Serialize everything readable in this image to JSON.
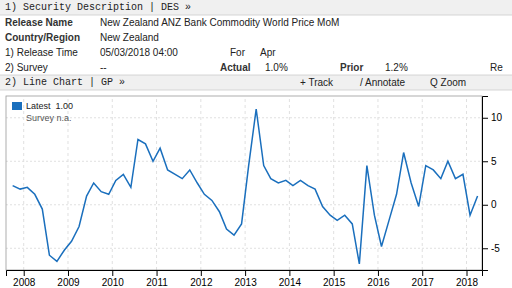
{
  "chart_data": {
    "type": "line",
    "annotations": [
      "1) Security Description  | DES »",
      "Release Name",
      "New Zealand ANZ Bank Commodity World Price MoM",
      "Country/Region",
      "New Zealand",
      "1) Release Time",
      "05/03/2018 04:00",
      "For",
      "Apr",
      "2) Survey",
      "--",
      "Actual",
      "1.0%",
      "Prior",
      "1.2%",
      "Re",
      "2) Line Chart | GP »",
      "+ Track",
      "/ Annotate",
      "Q Zoom",
      "Latest  1.00",
      "Survey n.a."
    ],
    "x": [
      2007.75,
      2007.92,
      2008.08,
      2008.25,
      2008.42,
      2008.58,
      2008.75,
      2008.92,
      2009.08,
      2009.25,
      2009.42,
      2009.58,
      2009.75,
      2009.92,
      2010.08,
      2010.25,
      2010.42,
      2010.58,
      2010.75,
      2010.92,
      2011.08,
      2011.25,
      2011.42,
      2011.58,
      2011.75,
      2011.92,
      2012.08,
      2012.25,
      2012.42,
      2012.58,
      2012.75,
      2012.92,
      2013.08,
      2013.25,
      2013.42,
      2013.58,
      2013.75,
      2013.92,
      2014.08,
      2014.25,
      2014.42,
      2014.58,
      2014.75,
      2014.92,
      2015.08,
      2015.25,
      2015.42,
      2015.58,
      2015.75,
      2015.92,
      2016.08,
      2016.25,
      2016.42,
      2016.58,
      2016.75,
      2016.92,
      2017.08,
      2017.25,
      2017.42,
      2017.58,
      2017.75,
      2017.92,
      2018.08,
      2018.25
    ],
    "values": [
      2.2,
      1.8,
      2.0,
      1.2,
      -0.5,
      -5.8,
      -6.5,
      -5.2,
      -4.2,
      -2.5,
      1.0,
      2.5,
      1.5,
      1.2,
      2.8,
      3.5,
      2.0,
      7.5,
      7.0,
      5.0,
      6.5,
      4.0,
      3.5,
      3.0,
      4.0,
      2.5,
      1.2,
      0.5,
      -0.8,
      -2.8,
      -3.5,
      -2.2,
      4.5,
      11.0,
      4.5,
      3.0,
      2.5,
      2.8,
      2.2,
      2.8,
      2.2,
      1.8,
      -0.2,
      -1.2,
      -1.8,
      -1.2,
      -2.2,
      -6.8,
      4.5,
      -1.2,
      -4.8,
      -1.8,
      1.2,
      6.0,
      2.5,
      -0.2,
      4.5,
      4.0,
      3.0,
      5.0,
      3.0,
      3.5,
      -1.2,
      1.0
    ],
    "color": "#1a6fbd",
    "xlim": [
      2007.6,
      2018.35
    ],
    "xticks": [
      2008,
      2009,
      2010,
      2011,
      2012,
      2013,
      2014,
      2015,
      2016,
      2017,
      2018
    ],
    "ylim": [
      -7.5,
      12.5
    ],
    "yticks": [
      -5,
      0,
      5,
      10
    ],
    "grid": true
  }
}
